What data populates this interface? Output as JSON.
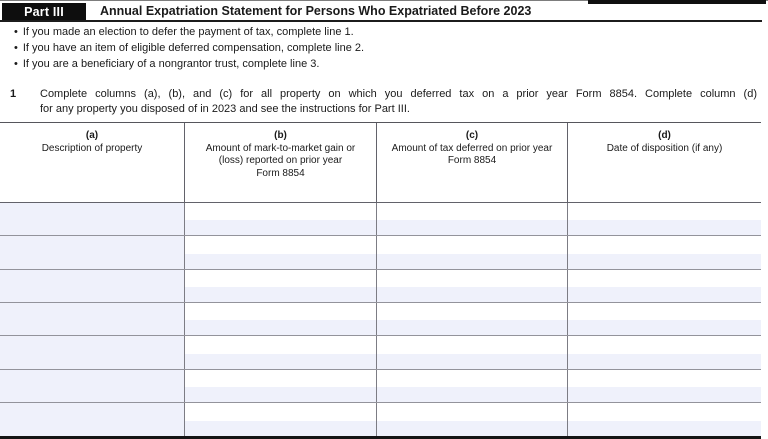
{
  "part_header": {
    "label": "Part III",
    "title": "Annual Expatriation Statement for Persons Who Expatriated Before 2023"
  },
  "bullets": [
    "If you made an election to defer the payment of tax, complete line 1.",
    "If you have an item of eligible deferred compensation, complete line 2.",
    "If you are a beneficiary of a nongrantor trust, complete line 3."
  ],
  "line1": {
    "number": "1",
    "lines": [
      "Complete columns (a), (b), and (c) for all property on which you deferred tax on a prior year Form 8854. Complete column (d)",
      "for any property you disposed of in 2023 and see the instructions for Part III."
    ]
  },
  "table": {
    "columns": [
      {
        "letter": "(a)",
        "lines": [
          "Description of property"
        ]
      },
      {
        "letter": "(b)",
        "lines": [
          "Amount of mark-to-market gain or",
          "(loss) reported on prior year",
          "Form 8854"
        ]
      },
      {
        "letter": "(c)",
        "lines": [
          "Amount of tax deferred on prior year",
          "Form 8854"
        ]
      },
      {
        "letter": "(d)",
        "lines": [
          "Date of disposition (if any)"
        ]
      }
    ],
    "rows": [
      [
        "",
        "",
        "",
        ""
      ],
      [
        "",
        "",
        "",
        ""
      ],
      [
        "",
        "",
        "",
        ""
      ],
      [
        "",
        "",
        "",
        ""
      ],
      [
        "",
        "",
        "",
        ""
      ],
      [
        "",
        "",
        "",
        ""
      ],
      [
        "",
        "",
        "",
        ""
      ]
    ]
  },
  "colors": {
    "field_highlight": "#eff1fb",
    "grid_line": "#93939b",
    "header_bar": "#0e0e0e"
  }
}
